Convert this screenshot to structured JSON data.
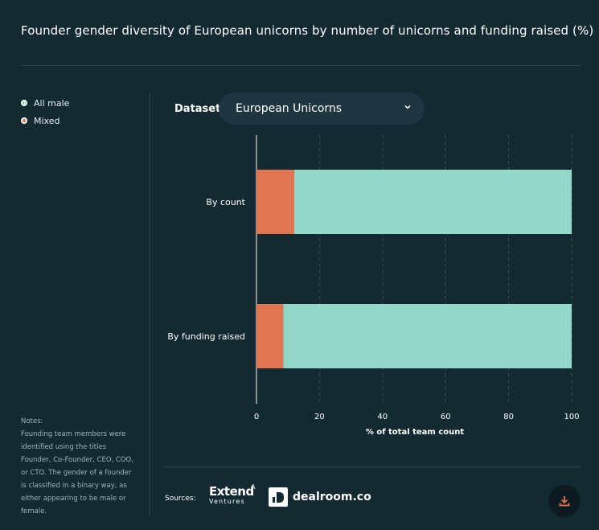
{
  "title": "Founder gender diversity of European unicorns by number of unicorns and funding raised (%)",
  "legend": [
    {
      "label": "All male",
      "color": "#93d7c9"
    },
    {
      "label": "Mixed",
      "color": "#e07552"
    }
  ],
  "dataset": {
    "label": "Dataset",
    "selected": "European Unicorns"
  },
  "notes": {
    "heading": "Notes:",
    "text": "Founding team members were identified using the titles Founder, Co-Founder, CEO, COO, or CTO. The gender of a founder is classified in a binary way, as either appearing to be male or female."
  },
  "sources": {
    "label": "Sources:",
    "extend": {
      "main": "Extend",
      "sub": "Ventures",
      "mark": "A"
    },
    "dealroom": "dealroom.co"
  },
  "icons": {
    "dropdown": "chevron-down-icon",
    "download": "download-icon"
  },
  "chart_data": {
    "type": "bar",
    "orientation": "horizontal",
    "stacked": true,
    "categories": [
      "By count",
      "By funding raised"
    ],
    "series": [
      {
        "name": "Mixed",
        "values": [
          12,
          8.5
        ],
        "color": "#e07552"
      },
      {
        "name": "All male",
        "values": [
          88,
          91.5
        ],
        "color": "#93d7c9"
      }
    ],
    "xlabel": "% of total team count",
    "xlim": [
      0,
      100
    ],
    "xticks": [
      "0",
      "20",
      "40",
      "60",
      "80",
      "100"
    ],
    "grid": "vertical dashed",
    "legend_position": "top-left"
  }
}
